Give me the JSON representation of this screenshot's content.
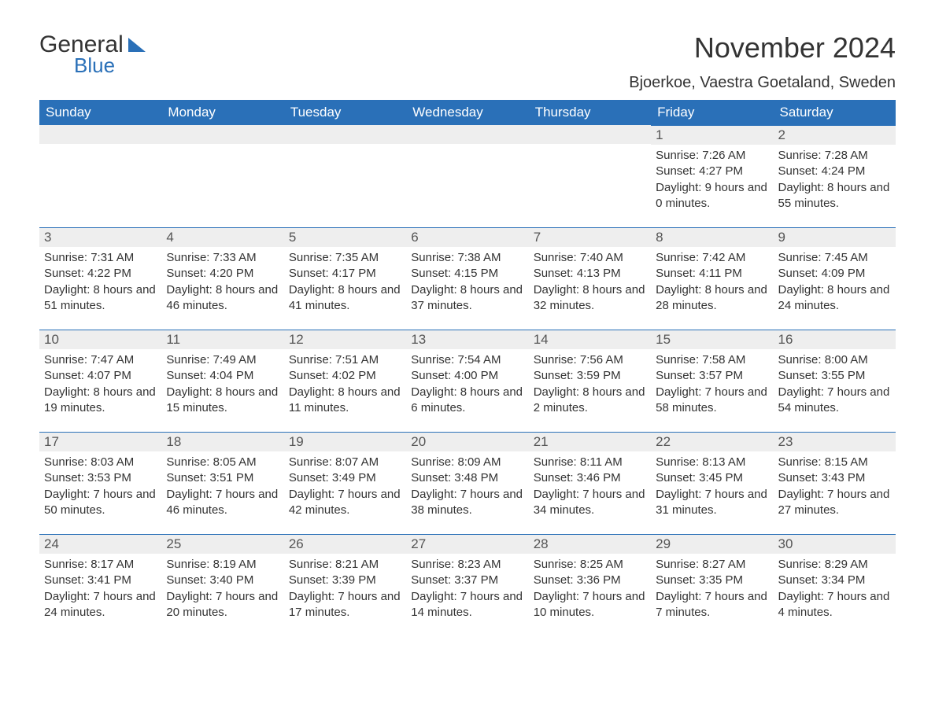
{
  "logo": {
    "text1": "General",
    "text2": "Blue"
  },
  "title": "November 2024",
  "location": "Bjoerkoe, Vaestra Goetaland, Sweden",
  "weekdays": [
    "Sunday",
    "Monday",
    "Tuesday",
    "Wednesday",
    "Thursday",
    "Friday",
    "Saturday"
  ],
  "labels": {
    "sunrise": "Sunrise",
    "sunset": "Sunset",
    "daylight": "Daylight"
  },
  "colors": {
    "header_bg": "#2a70b8",
    "header_text": "#ffffff",
    "daynum_bg": "#eeeeee",
    "border": "#2a70b8",
    "body_text": "#333333",
    "logo_blue": "#2a70b8"
  },
  "grid_cols": 7,
  "first_weekday_index": 5,
  "days": [
    {
      "n": 1,
      "sunrise": "7:26 AM",
      "sunset": "4:27 PM",
      "dl_h": 9,
      "dl_m": 0
    },
    {
      "n": 2,
      "sunrise": "7:28 AM",
      "sunset": "4:24 PM",
      "dl_h": 8,
      "dl_m": 55
    },
    {
      "n": 3,
      "sunrise": "7:31 AM",
      "sunset": "4:22 PM",
      "dl_h": 8,
      "dl_m": 51
    },
    {
      "n": 4,
      "sunrise": "7:33 AM",
      "sunset": "4:20 PM",
      "dl_h": 8,
      "dl_m": 46
    },
    {
      "n": 5,
      "sunrise": "7:35 AM",
      "sunset": "4:17 PM",
      "dl_h": 8,
      "dl_m": 41
    },
    {
      "n": 6,
      "sunrise": "7:38 AM",
      "sunset": "4:15 PM",
      "dl_h": 8,
      "dl_m": 37
    },
    {
      "n": 7,
      "sunrise": "7:40 AM",
      "sunset": "4:13 PM",
      "dl_h": 8,
      "dl_m": 32
    },
    {
      "n": 8,
      "sunrise": "7:42 AM",
      "sunset": "4:11 PM",
      "dl_h": 8,
      "dl_m": 28
    },
    {
      "n": 9,
      "sunrise": "7:45 AM",
      "sunset": "4:09 PM",
      "dl_h": 8,
      "dl_m": 24
    },
    {
      "n": 10,
      "sunrise": "7:47 AM",
      "sunset": "4:07 PM",
      "dl_h": 8,
      "dl_m": 19
    },
    {
      "n": 11,
      "sunrise": "7:49 AM",
      "sunset": "4:04 PM",
      "dl_h": 8,
      "dl_m": 15
    },
    {
      "n": 12,
      "sunrise": "7:51 AM",
      "sunset": "4:02 PM",
      "dl_h": 8,
      "dl_m": 11
    },
    {
      "n": 13,
      "sunrise": "7:54 AM",
      "sunset": "4:00 PM",
      "dl_h": 8,
      "dl_m": 6
    },
    {
      "n": 14,
      "sunrise": "7:56 AM",
      "sunset": "3:59 PM",
      "dl_h": 8,
      "dl_m": 2
    },
    {
      "n": 15,
      "sunrise": "7:58 AM",
      "sunset": "3:57 PM",
      "dl_h": 7,
      "dl_m": 58
    },
    {
      "n": 16,
      "sunrise": "8:00 AM",
      "sunset": "3:55 PM",
      "dl_h": 7,
      "dl_m": 54
    },
    {
      "n": 17,
      "sunrise": "8:03 AM",
      "sunset": "3:53 PM",
      "dl_h": 7,
      "dl_m": 50
    },
    {
      "n": 18,
      "sunrise": "8:05 AM",
      "sunset": "3:51 PM",
      "dl_h": 7,
      "dl_m": 46
    },
    {
      "n": 19,
      "sunrise": "8:07 AM",
      "sunset": "3:49 PM",
      "dl_h": 7,
      "dl_m": 42
    },
    {
      "n": 20,
      "sunrise": "8:09 AM",
      "sunset": "3:48 PM",
      "dl_h": 7,
      "dl_m": 38
    },
    {
      "n": 21,
      "sunrise": "8:11 AM",
      "sunset": "3:46 PM",
      "dl_h": 7,
      "dl_m": 34
    },
    {
      "n": 22,
      "sunrise": "8:13 AM",
      "sunset": "3:45 PM",
      "dl_h": 7,
      "dl_m": 31
    },
    {
      "n": 23,
      "sunrise": "8:15 AM",
      "sunset": "3:43 PM",
      "dl_h": 7,
      "dl_m": 27
    },
    {
      "n": 24,
      "sunrise": "8:17 AM",
      "sunset": "3:41 PM",
      "dl_h": 7,
      "dl_m": 24
    },
    {
      "n": 25,
      "sunrise": "8:19 AM",
      "sunset": "3:40 PM",
      "dl_h": 7,
      "dl_m": 20
    },
    {
      "n": 26,
      "sunrise": "8:21 AM",
      "sunset": "3:39 PM",
      "dl_h": 7,
      "dl_m": 17
    },
    {
      "n": 27,
      "sunrise": "8:23 AM",
      "sunset": "3:37 PM",
      "dl_h": 7,
      "dl_m": 14
    },
    {
      "n": 28,
      "sunrise": "8:25 AM",
      "sunset": "3:36 PM",
      "dl_h": 7,
      "dl_m": 10
    },
    {
      "n": 29,
      "sunrise": "8:27 AM",
      "sunset": "3:35 PM",
      "dl_h": 7,
      "dl_m": 7
    },
    {
      "n": 30,
      "sunrise": "8:29 AM",
      "sunset": "3:34 PM",
      "dl_h": 7,
      "dl_m": 4
    }
  ]
}
